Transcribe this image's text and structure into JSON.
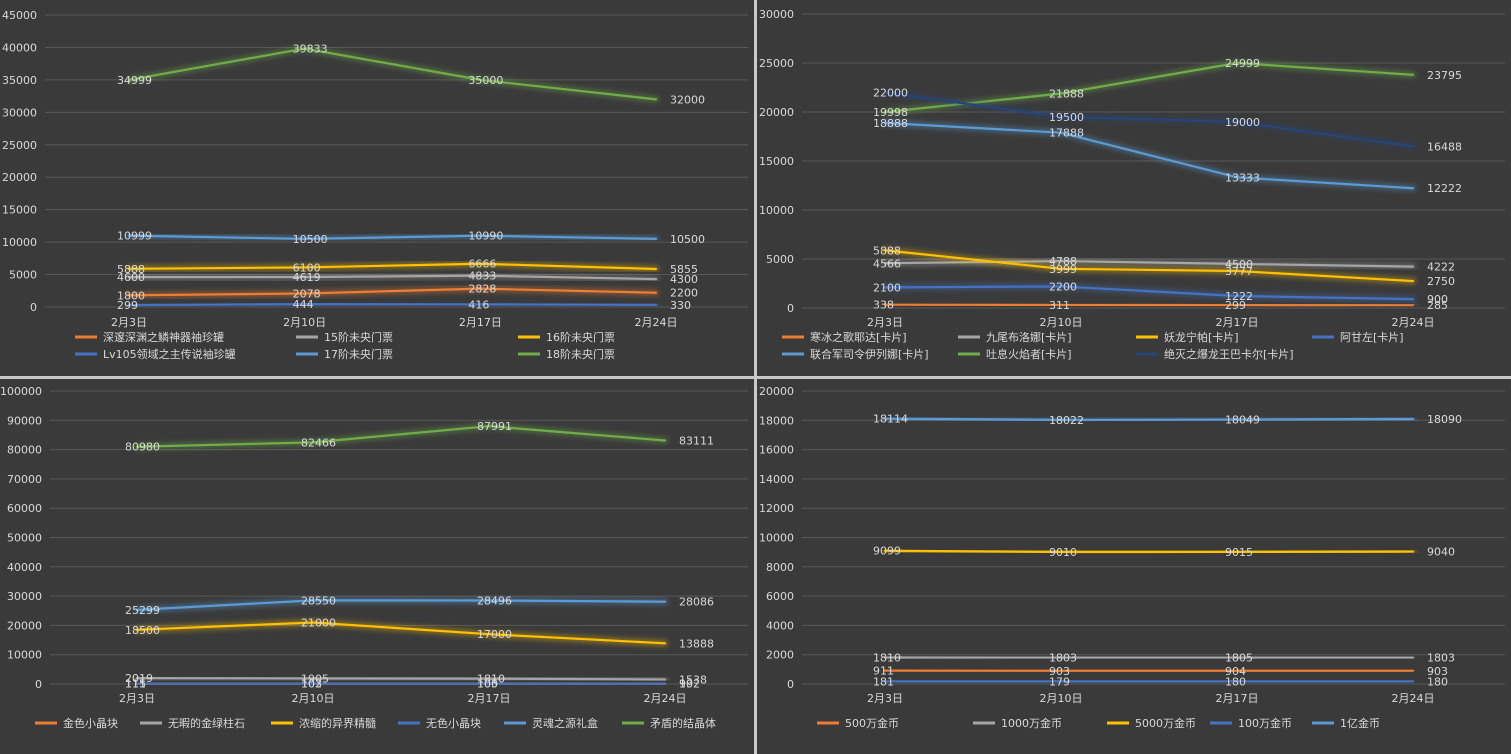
{
  "chart_data": [
    {
      "type": "line",
      "categories": [
        "2月3日",
        "2月10日",
        "2月17日",
        "2月24日"
      ],
      "ylim": [
        0,
        45000
      ],
      "yticks": [
        0,
        5000,
        10000,
        15000,
        20000,
        25000,
        30000,
        35000,
        40000,
        45000
      ],
      "grid": true,
      "legend": "bottom",
      "series": [
        {
          "name": "深邃深渊之鳞神器袖珍罐",
          "color": "#ed7d31",
          "values": [
            1800,
            2078,
            2828,
            2200
          ]
        },
        {
          "name": "15阶未央门票",
          "color": "#a5a5a5",
          "values": [
            4600,
            4619,
            4833,
            4300
          ]
        },
        {
          "name": "16阶未央门票",
          "color": "#ffc000",
          "values": [
            5888,
            6100,
            6666,
            5855
          ]
        },
        {
          "name": "Lv105领域之主传说袖珍罐",
          "color": "#4472c4",
          "values": [
            299,
            444,
            416,
            330
          ]
        },
        {
          "name": "17阶未央门票",
          "color": "#5b9bd5",
          "values": [
            10999,
            10500,
            10990,
            10500
          ]
        },
        {
          "name": "18阶未央门票",
          "color": "#70ad47",
          "values": [
            34999,
            39833,
            35000,
            32000
          ]
        }
      ]
    },
    {
      "type": "line",
      "categories": [
        "2月3日",
        "2月10日",
        "2月17日",
        "2月24日"
      ],
      "ylim": [
        0,
        30000
      ],
      "yticks": [
        0,
        5000,
        10000,
        15000,
        20000,
        25000,
        30000
      ],
      "grid": true,
      "legend": "bottom",
      "series": [
        {
          "name": "寒冰之歌耶达[卡片]",
          "color": "#ed7d31",
          "values": [
            338,
            311,
            299,
            285
          ]
        },
        {
          "name": "九尾布洛娜[卡片]",
          "color": "#a5a5a5",
          "values": [
            4566,
            4788,
            4500,
            4222
          ]
        },
        {
          "name": "妖龙宁帕[卡片]",
          "color": "#ffc000",
          "values": [
            5888,
            3999,
            3777,
            2750
          ]
        },
        {
          "name": "阿甘左[卡片]",
          "color": "#4472c4",
          "values": [
            2100,
            2200,
            1222,
            900
          ]
        },
        {
          "name": "联合军司令伊列娜[卡片]",
          "color": "#5b9bd5",
          "values": [
            18888,
            17888,
            13333,
            12222
          ]
        },
        {
          "name": "吐息火焰者[卡片]",
          "color": "#70ad47",
          "values": [
            19998,
            21888,
            24999,
            23795
          ]
        },
        {
          "name": "绝灭之爆龙王巴卡尔[卡片]",
          "color": "#264478",
          "values": [
            22000,
            19500,
            19000,
            16488
          ]
        }
      ]
    },
    {
      "type": "line",
      "categories": [
        "2月3日",
        "2月10日",
        "2月17日",
        "2月24日"
      ],
      "ylim": [
        0,
        100000
      ],
      "yticks": [
        0,
        10000,
        20000,
        30000,
        40000,
        50000,
        60000,
        70000,
        80000,
        90000,
        100000
      ],
      "grid": true,
      "legend": "bottom",
      "series": [
        {
          "name": "金色小晶块",
          "color": "#ed7d31",
          "values": [
            115,
            103,
            105,
            102
          ]
        },
        {
          "name": "无暇的金绿柱石",
          "color": "#a5a5a5",
          "values": [
            2019,
            1905,
            1810,
            1538
          ]
        },
        {
          "name": "浓缩的异界精髓",
          "color": "#ffc000",
          "values": [
            18500,
            21000,
            17000,
            13888
          ]
        },
        {
          "name": "无色小晶块",
          "color": "#4472c4",
          "values": [
            111,
            102,
            100,
            99
          ]
        },
        {
          "name": "灵魂之源礼盒",
          "color": "#5b9bd5",
          "values": [
            25299,
            28550,
            28496,
            28086
          ]
        },
        {
          "name": "矛盾的结晶体",
          "color": "#70ad47",
          "values": [
            80980,
            82466,
            87991,
            83111
          ]
        }
      ]
    },
    {
      "type": "line",
      "categories": [
        "2月3日",
        "2月10日",
        "2月17日",
        "2月24日"
      ],
      "ylim": [
        0,
        20000
      ],
      "yticks": [
        0,
        2000,
        4000,
        6000,
        8000,
        10000,
        12000,
        14000,
        16000,
        18000,
        20000
      ],
      "grid": true,
      "legend": "bottom",
      "series": [
        {
          "name": "500万金币",
          "color": "#ed7d31",
          "values": [
            911,
            903,
            904,
            903
          ]
        },
        {
          "name": "1000万金币",
          "color": "#a5a5a5",
          "values": [
            1810,
            1803,
            1805,
            1803
          ]
        },
        {
          "name": "5000万金币",
          "color": "#ffc000",
          "values": [
            9099,
            9010,
            9015,
            9040
          ]
        },
        {
          "name": "100万金币",
          "color": "#4472c4",
          "values": [
            181,
            179,
            180,
            180
          ]
        },
        {
          "name": "1亿金币",
          "color": "#5b9bd5",
          "values": [
            18114,
            18022,
            18049,
            18090
          ]
        }
      ]
    }
  ]
}
